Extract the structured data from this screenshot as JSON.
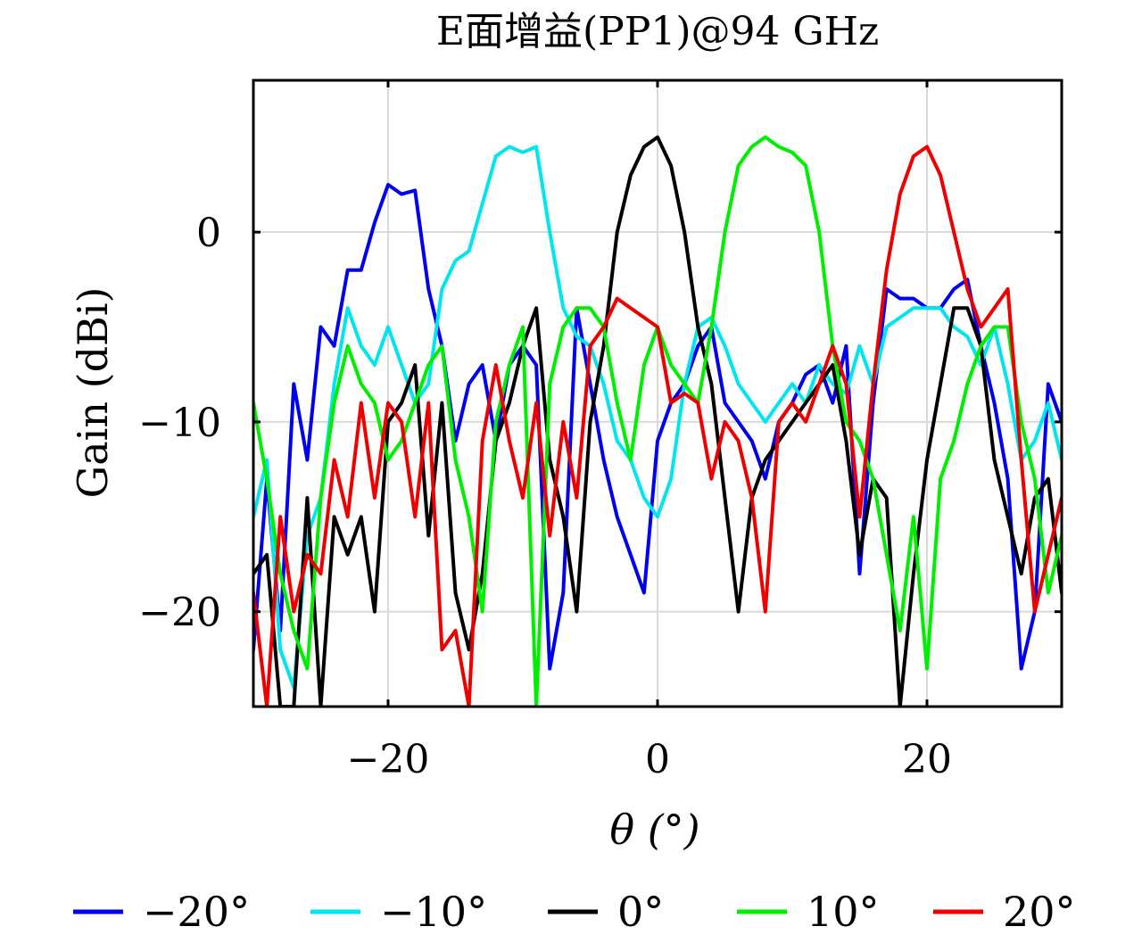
{
  "chart_data": {
    "type": "line",
    "title": "E面增益(PP1)@94 GHz",
    "xlabel": "θ (°)",
    "ylabel": "Gain (dBi)",
    "xlim": [
      -30,
      30
    ],
    "ylim": [
      -25,
      8
    ],
    "xticks": [
      -20,
      0,
      20
    ],
    "xtick_labels": [
      "−20",
      "0",
      "20"
    ],
    "yticks": [
      0,
      -10,
      -20
    ],
    "ytick_labels": [
      "0",
      "−10",
      "−20"
    ],
    "grid": true,
    "legend_position": "bottom",
    "series": [
      {
        "name": "−20°",
        "color": "#0000ee",
        "x": [
          -30,
          -29,
          -28,
          -27,
          -26,
          -25,
          -24,
          -23,
          -22,
          -21,
          -20,
          -19,
          -18,
          -17,
          -16,
          -15,
          -14,
          -13,
          -12,
          -11,
          -10,
          -9,
          -8,
          -7,
          -6,
          -5,
          -4,
          -3,
          -2,
          -1,
          0,
          1,
          2,
          3,
          4,
          5,
          6,
          7,
          8,
          9,
          10,
          11,
          12,
          13,
          14,
          15,
          16,
          17,
          18,
          19,
          20,
          21,
          22,
          23,
          24,
          25,
          26,
          27,
          28,
          29,
          30
        ],
        "y": [
          -22,
          -13,
          -21,
          -8,
          -12,
          -5,
          -6,
          -2,
          -2,
          0.5,
          2.5,
          2,
          2.2,
          -3,
          -6,
          -11,
          -8,
          -7,
          -11,
          -7,
          -6,
          -7,
          -23,
          -19,
          -4,
          -8,
          -12,
          -15,
          -17,
          -19,
          -11,
          -9,
          -8,
          -6,
          -5,
          -9,
          -10,
          -11,
          -13,
          -10,
          -9,
          -7.5,
          -7,
          -9,
          -6,
          -18,
          -9,
          -3,
          -3.5,
          -3.5,
          -4,
          -4,
          -3,
          -2.5,
          -6,
          -9,
          -13,
          -23,
          -20,
          -8,
          -10
        ]
      },
      {
        "name": "−10°",
        "color": "#00e5ee",
        "x": [
          -30,
          -29,
          -28,
          -27,
          -26,
          -25,
          -24,
          -23,
          -22,
          -21,
          -20,
          -19,
          -18,
          -17,
          -16,
          -15,
          -14,
          -13,
          -12,
          -11,
          -10,
          -9,
          -8,
          -7,
          -6,
          -5,
          -4,
          -3,
          -2,
          -1,
          0,
          1,
          2,
          3,
          4,
          5,
          6,
          7,
          8,
          9,
          10,
          11,
          12,
          13,
          14,
          15,
          16,
          17,
          18,
          19,
          20,
          21,
          22,
          23,
          24,
          25,
          26,
          27,
          28,
          29,
          30
        ],
        "y": [
          -15,
          -12,
          -22,
          -24,
          -16,
          -14,
          -8,
          -4,
          -6,
          -7,
          -5,
          -7,
          -9,
          -8,
          -3,
          -1.5,
          -1,
          1.5,
          4,
          4.5,
          4.2,
          4.5,
          0,
          -4,
          -5.5,
          -6,
          -8,
          -11,
          -12,
          -14,
          -15,
          -13,
          -8,
          -5,
          -4.5,
          -6,
          -8,
          -9,
          -10,
          -9,
          -8,
          -9,
          -7,
          -8,
          -8.5,
          -6,
          -8,
          -5,
          -4.5,
          -4,
          -4,
          -4,
          -5,
          -5.5,
          -7,
          -5,
          -8,
          -12,
          -11,
          -9,
          -12
        ]
      },
      {
        "name": "0°",
        "color": "#000000",
        "x": [
          -30,
          -29,
          -28,
          -27,
          -26,
          -25,
          -24,
          -23,
          -22,
          -21,
          -20,
          -19,
          -18,
          -17,
          -16,
          -15,
          -14,
          -13,
          -12,
          -11,
          -10,
          -9,
          -8,
          -7,
          -6,
          -5,
          -4,
          -3,
          -2,
          -1,
          0,
          1,
          2,
          3,
          4,
          5,
          6,
          7,
          8,
          9,
          10,
          11,
          12,
          13,
          14,
          15,
          16,
          17,
          18,
          19,
          20,
          21,
          22,
          23,
          24,
          25,
          26,
          27,
          28,
          29,
          30
        ],
        "y": [
          -18,
          -17,
          -25,
          -25,
          -14,
          -25,
          -15,
          -17,
          -15,
          -20,
          -10,
          -9,
          -7,
          -16,
          -9,
          -19,
          -22,
          -18,
          -11,
          -9,
          -6,
          -4,
          -12,
          -15,
          -20,
          -10,
          -6,
          0,
          3,
          4.5,
          5,
          3.5,
          0,
          -5,
          -8,
          -14,
          -20,
          -14,
          -12,
          -11,
          -10,
          -9,
          -8,
          -7,
          -11,
          -17,
          -13,
          -14,
          -25,
          -18,
          -12,
          -8,
          -4,
          -4,
          -6,
          -12,
          -15,
          -18,
          -14,
          -13,
          -19
        ]
      },
      {
        "name": "10°",
        "color": "#00ee00",
        "x": [
          -30,
          -29,
          -28,
          -27,
          -26,
          -25,
          -24,
          -23,
          -22,
          -21,
          -20,
          -19,
          -18,
          -17,
          -16,
          -15,
          -14,
          -13,
          -12,
          -11,
          -10,
          -9,
          -8,
          -7,
          -6,
          -5,
          -4,
          -3,
          -2,
          -1,
          0,
          1,
          2,
          3,
          4,
          5,
          6,
          7,
          8,
          9,
          10,
          11,
          12,
          13,
          14,
          15,
          16,
          17,
          18,
          19,
          20,
          21,
          22,
          23,
          24,
          25,
          26,
          27,
          28,
          29,
          30
        ],
        "y": [
          -9,
          -13,
          -18,
          -21,
          -23,
          -14,
          -9,
          -6,
          -8,
          -9,
          -12,
          -11,
          -9,
          -7,
          -6,
          -12,
          -15,
          -20,
          -10,
          -7,
          -5,
          -25,
          -8,
          -5,
          -4,
          -4,
          -5,
          -9,
          -12,
          -7,
          -5,
          -7,
          -8,
          -9,
          -5,
          0,
          3.5,
          4.5,
          5,
          4.5,
          4.2,
          3.5,
          0,
          -6,
          -10,
          -11,
          -13,
          -17,
          -21,
          -15,
          -23,
          -13,
          -11,
          -8,
          -6,
          -5,
          -5,
          -10,
          -13,
          -19,
          -16
        ]
      },
      {
        "name": "20°",
        "color": "#ee0000",
        "x": [
          -30,
          -29,
          -28,
          -27,
          -26,
          -25,
          -24,
          -23,
          -22,
          -21,
          -20,
          -19,
          -18,
          -17,
          -16,
          -15,
          -14,
          -13,
          -12,
          -11,
          -10,
          -9,
          -8,
          -7,
          -6,
          -5,
          -4,
          -3,
          -2,
          -1,
          0,
          1,
          2,
          3,
          4,
          5,
          6,
          7,
          8,
          9,
          10,
          11,
          12,
          13,
          14,
          15,
          16,
          17,
          18,
          19,
          20,
          21,
          22,
          23,
          24,
          25,
          26,
          27,
          28,
          29,
          30
        ],
        "y": [
          -19,
          -25,
          -15,
          -20,
          -17,
          -18,
          -12,
          -15,
          -9,
          -14,
          -9,
          -10,
          -15,
          -9,
          -22,
          -21,
          -25,
          -11,
          -7,
          -11,
          -14,
          -9,
          -16,
          -10,
          -14,
          -6,
          -5,
          -3.5,
          -4,
          -4.5,
          -5,
          -9,
          -8.5,
          -9,
          -13,
          -10,
          -11,
          -14,
          -20,
          -10,
          -9,
          -10,
          -8,
          -6,
          -8,
          -15,
          -8,
          -2,
          2,
          4,
          4.5,
          3,
          0,
          -3,
          -5,
          -4,
          -3,
          -12,
          -20,
          -17,
          -14
        ]
      }
    ]
  }
}
